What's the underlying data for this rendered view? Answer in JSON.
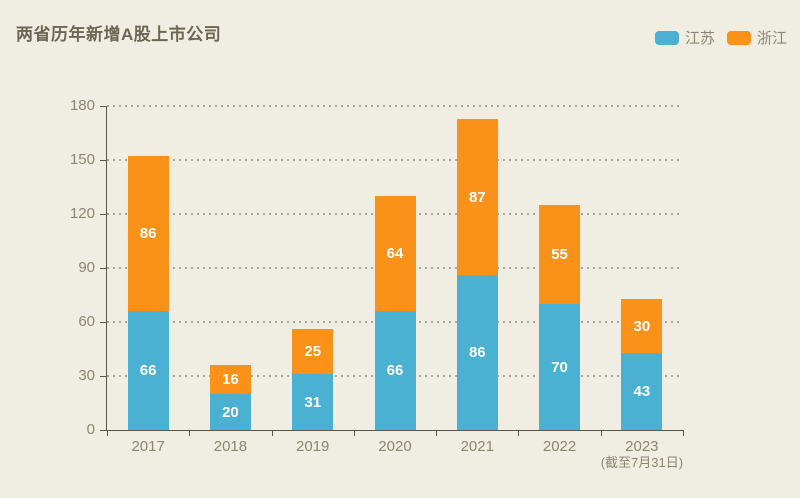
{
  "title": "两省历年新增A股上市公司",
  "colors": {
    "background": "#f0eee2",
    "title_text": "#6c6754",
    "axis_line": "#5a5747",
    "axis_label": "#8b8573",
    "gridline": "#aba89a",
    "value_label": "#ffffff",
    "jiangsu": "#4ab1d3",
    "zhejiang": "#fa9119"
  },
  "legend": {
    "position": "top-right",
    "items": [
      {
        "label": "江苏",
        "color": "#4ab1d3"
      },
      {
        "label": "浙江",
        "color": "#fa9119"
      }
    ]
  },
  "chart_data": {
    "type": "bar",
    "stacked": true,
    "title": "两省历年新增A股上市公司",
    "xlabel": "",
    "ylabel": "",
    "categories": [
      "2017",
      "2018",
      "2019",
      "2020",
      "2021",
      "2022",
      "2023"
    ],
    "category_notes": [
      "",
      "",
      "",
      "",
      "",
      "",
      "(截至7月31日)"
    ],
    "series": [
      {
        "name": "江苏",
        "color": "#4ab1d3",
        "values": [
          66,
          20,
          31,
          66,
          86,
          70,
          43
        ]
      },
      {
        "name": "浙江",
        "color": "#fa9119",
        "values": [
          86,
          16,
          25,
          64,
          87,
          55,
          30
        ]
      }
    ],
    "totals": [
      152,
      36,
      56,
      130,
      173,
      125,
      73
    ],
    "ylim": [
      0,
      180
    ],
    "yticks": [
      0,
      30,
      60,
      90,
      120,
      150,
      180
    ],
    "grid": true,
    "gridline_style": "dotted",
    "legend_position": "top-right"
  }
}
